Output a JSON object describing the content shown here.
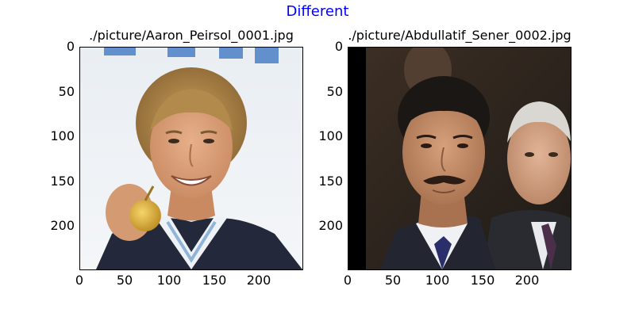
{
  "figure": {
    "suptitle": "Different",
    "suptitle_color": "#0000ff"
  },
  "panels": [
    {
      "title": "./picture/Aaron_Peirsol_0001.jpg",
      "image": "photo-portrait-smiling-swimmer-with-gold-medal"
    },
    {
      "title": "./picture/Abdullatif_Sener_0002.jpg",
      "image": "photo-portrait-man-with-mustache-in-suit"
    }
  ],
  "chart_data": [
    {
      "type": "image",
      "title": "./picture/Aaron_Peirsol_0001.jpg",
      "xlim": [
        0,
        250
      ],
      "ylim": [
        250,
        0
      ],
      "xticks": [
        0,
        50,
        100,
        150,
        200
      ],
      "yticks": [
        0,
        50,
        100,
        150,
        200
      ]
    },
    {
      "type": "image",
      "title": "./picture/Abdullatif_Sener_0002.jpg",
      "xlim": [
        0,
        250
      ],
      "ylim": [
        250,
        0
      ],
      "xticks": [
        0,
        50,
        100,
        150,
        200
      ],
      "yticks": [
        0,
        50,
        100,
        150,
        200
      ]
    }
  ]
}
